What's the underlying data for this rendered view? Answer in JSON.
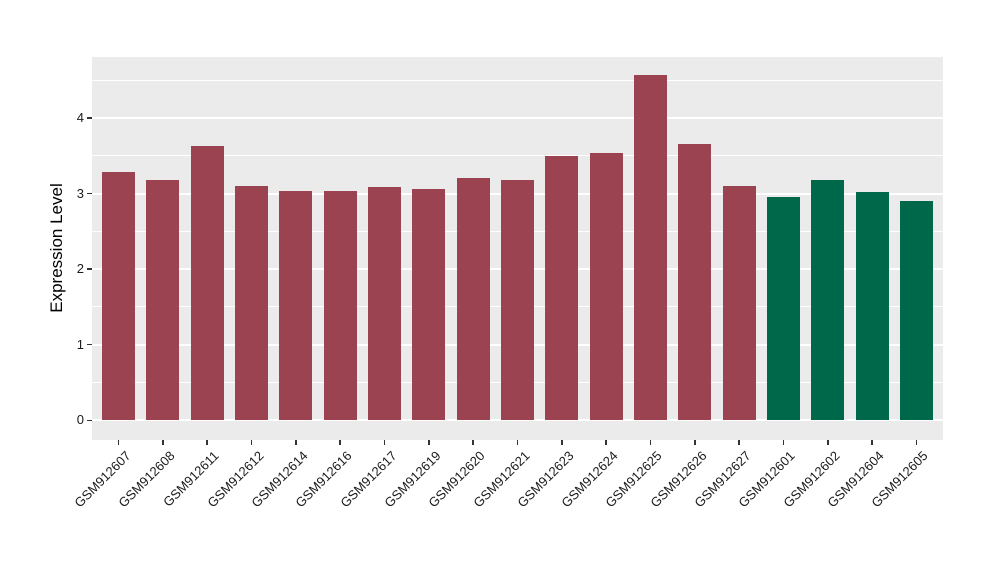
{
  "chart_data": {
    "type": "bar",
    "title": "",
    "xlabel": "",
    "ylabel": "Expression Level",
    "categories": [
      "GSM912607",
      "GSM912608",
      "GSM912611",
      "GSM912612",
      "GSM912614",
      "GSM912616",
      "GSM912617",
      "GSM912619",
      "GSM912620",
      "GSM912621",
      "GSM912623",
      "GSM912624",
      "GSM912625",
      "GSM912626",
      "GSM912627",
      "GSM912601",
      "GSM912602",
      "GSM912604",
      "GSM912605"
    ],
    "values": [
      3.28,
      3.18,
      3.63,
      3.1,
      3.03,
      3.04,
      3.08,
      3.06,
      3.2,
      3.18,
      3.49,
      3.54,
      4.57,
      3.65,
      3.1,
      2.95,
      3.18,
      3.02,
      2.9
    ],
    "bar_color_keys": [
      "maroon",
      "maroon",
      "maroon",
      "maroon",
      "maroon",
      "maroon",
      "maroon",
      "maroon",
      "maroon",
      "maroon",
      "maroon",
      "maroon",
      "maroon",
      "maroon",
      "maroon",
      "green",
      "green",
      "green",
      "green"
    ],
    "palette": {
      "maroon": "#9B4351",
      "green": "#00684A"
    },
    "yticks": [
      "0",
      "1",
      "2",
      "3",
      "4"
    ],
    "ytick_values": [
      0,
      1,
      2,
      3,
      4
    ],
    "y_minor_tick_values": [
      0.5,
      1.5,
      2.5,
      3.5,
      4.5
    ],
    "ylim": [
      -0.26,
      4.81
    ],
    "panel_background": "#EBEBEB",
    "grid_color": "#FFFFFF",
    "grid": "major and minor horizontal white lines",
    "legend": "none",
    "x_label_rotation_deg": 45
  }
}
